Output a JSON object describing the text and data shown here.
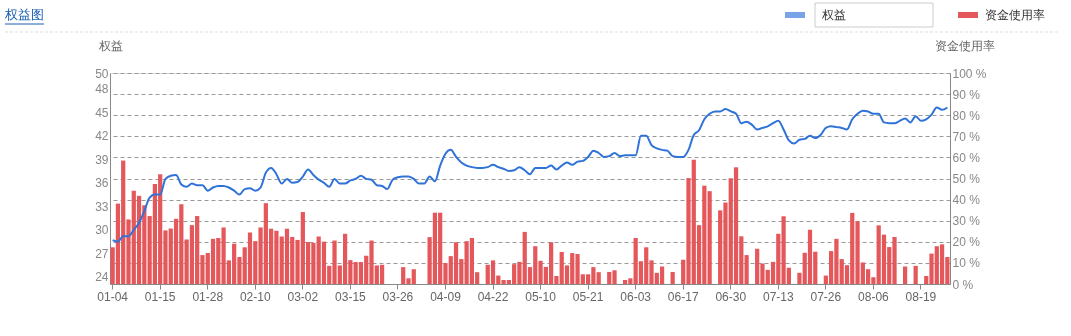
{
  "chart_data": {
    "type": "bar",
    "title": "权益图",
    "ylabel": "权益",
    "y2label": "资金使用率",
    "categories": [
      "01-04",
      null,
      null,
      null,
      null,
      null,
      null,
      null,
      null,
      "01-15",
      null,
      null,
      null,
      null,
      null,
      null,
      null,
      null,
      "01-28",
      null,
      null,
      null,
      null,
      null,
      null,
      null,
      null,
      "02-10",
      null,
      null,
      null,
      null,
      null,
      null,
      null,
      null,
      "03-02",
      null,
      null,
      null,
      null,
      null,
      null,
      null,
      null,
      "03-15",
      null,
      null,
      null,
      null,
      null,
      null,
      null,
      null,
      "03-26",
      null,
      null,
      null,
      null,
      null,
      null,
      null,
      null,
      "04-09",
      null,
      null,
      null,
      null,
      null,
      null,
      null,
      null,
      "04-22",
      null,
      null,
      null,
      null,
      null,
      null,
      null,
      null,
      "05-10",
      null,
      null,
      null,
      null,
      null,
      null,
      null,
      null,
      "05-21",
      null,
      null,
      null,
      null,
      null,
      null,
      null,
      null,
      "06-03",
      null,
      null,
      null,
      null,
      null,
      null,
      null,
      null,
      "06-17",
      null,
      null,
      null,
      null,
      null,
      null,
      null,
      null,
      "06-30",
      null,
      null,
      null,
      null,
      null,
      null,
      null,
      null,
      "07-13",
      null,
      null,
      null,
      null,
      null,
      null,
      null,
      null,
      "07-26",
      null,
      null,
      null,
      null,
      null,
      null,
      null,
      null,
      "08-06",
      null,
      null,
      null,
      null,
      null,
      null,
      null,
      null,
      "08-19",
      null,
      null,
      null,
      null,
      null
    ],
    "series": [
      {
        "name": "权益",
        "type": "line",
        "color": "#2f72d8",
        "values": [
          28.7,
          28.5,
          29.2,
          29.2,
          30.0,
          30.9,
          32.4,
          34.1,
          34.5,
          34.5,
          36.5,
          36.9,
          37.0,
          35.8,
          35.5,
          35.9,
          35.7,
          35.7,
          35.0,
          35.4,
          35.6,
          35.6,
          35.4,
          35.0,
          34.5,
          35.2,
          35.3,
          35.0,
          35.4,
          37.3,
          37.9,
          37.1,
          35.9,
          36.5,
          36.0,
          36.1,
          36.8,
          37.7,
          37.0,
          36.4,
          36.0,
          35.5,
          36.5,
          35.9,
          35.9,
          36.3,
          36.5,
          36.9,
          36.5,
          36.4,
          35.7,
          35.6,
          35.2,
          36.4,
          36.7,
          36.8,
          36.8,
          36.5,
          35.9,
          35.9,
          36.8,
          36.2,
          38.2,
          39.7,
          40.2,
          39.3,
          38.6,
          38.2,
          38.0,
          37.9,
          37.9,
          38.0,
          38.3,
          38.0,
          37.8,
          37.5,
          37.6,
          38.0,
          37.6,
          37.1,
          37.9,
          37.9,
          37.9,
          38.2,
          37.7,
          38.2,
          38.6,
          38.3,
          38.7,
          38.8,
          39.3,
          40.1,
          39.8,
          39.3,
          39.4,
          39.8,
          39.4,
          39.5,
          39.5,
          39.5,
          42.0,
          42.0,
          40.8,
          40.4,
          40.2,
          40.1,
          39.4,
          39.3,
          39.3,
          40.2,
          42.1,
          42.7,
          44.1,
          44.8,
          45.1,
          45.1,
          45.4,
          45.1,
          44.8,
          43.6,
          43.8,
          43.4,
          42.8,
          43.0,
          43.2,
          43.6,
          43.9,
          42.8,
          41.4,
          41.0,
          41.5,
          41.6,
          42.0,
          41.7,
          42.1,
          43.0,
          43.2,
          43.1,
          43.0,
          42.8,
          44.1,
          44.8,
          45.2,
          45.1,
          44.8,
          44.8,
          43.7,
          43.6,
          43.6,
          43.9,
          44.2,
          43.7,
          44.5,
          43.9,
          44.1,
          44.7,
          45.6,
          45.3,
          45.6
        ]
      },
      {
        "name": "资金使用率",
        "axis": "y2",
        "color": "#e4575b",
        "values": [
          17.4,
          38.1,
          58.5,
          30.6,
          44.2,
          41.8,
          37.3,
          32.2,
          47.4,
          52.0,
          25.4,
          26.3,
          30.9,
          37.8,
          21.1,
          27.9,
          32.2,
          13.7,
          14.7,
          21.4,
          21.8,
          26.8,
          11.2,
          19.1,
          12.8,
          17.4,
          24.4,
          20.3,
          26.8,
          38.3,
          26.2,
          25.2,
          22.5,
          26.2,
          22.3,
          20.9,
          34.1,
          19.9,
          19.5,
          22.5,
          20.1,
          8.6,
          20.6,
          8.8,
          23.8,
          11.3,
          10.4,
          10.4,
          13.4,
          20.6,
          8.8,
          9.1,
          0,
          0,
          0,
          8.0,
          2.7,
          7.0,
          0,
          0,
          22.2,
          33.8,
          33.8,
          9.9,
          13.2,
          19.8,
          11.8,
          20.3,
          21.8,
          5.6,
          0,
          9.1,
          11.2,
          4.0,
          1.9,
          1.9,
          9.4,
          10.5,
          24.7,
          8.0,
          17.9,
          11.0,
          8.1,
          19.8,
          3.8,
          15.2,
          8.8,
          14.7,
          14.2,
          4.6,
          4.6,
          8.0,
          5.6,
          0,
          5.7,
          6.5,
          0,
          1.9,
          2.7,
          21.8,
          10.8,
          17.4,
          11.2,
          5.3,
          8.3,
          0,
          5.7,
          0,
          11.5,
          50.2,
          58.9,
          27.9,
          46.6,
          44.0,
          0,
          34.9,
          38.6,
          50.1,
          55.3,
          22.6,
          13.7,
          0,
          16.7,
          9.7,
          6.7,
          10.5,
          23.8,
          32.1,
          7.7,
          0,
          5.3,
          14.8,
          25.7,
          15.3,
          0,
          4.0,
          15.6,
          21.4,
          11.8,
          8.9,
          33.7,
          29.7,
          10.2,
          7.0,
          3.2,
          27.8,
          23.4,
          17.5,
          22.3,
          0,
          8.3,
          0,
          8.6,
          0,
          3.8,
          14.4,
          17.9,
          18.8,
          12.8
        ]
      }
    ],
    "ylim": [
      23.1,
      50
    ],
    "yticks": [
      24,
      27,
      30,
      33,
      36,
      39,
      42,
      45,
      48,
      50
    ],
    "y2lim": [
      0,
      100
    ],
    "y2ticks": [
      {
        "value": 0,
        "label": "0 %"
      },
      {
        "value": 10,
        "label": "10 %"
      },
      {
        "value": 20,
        "label": "20 %"
      },
      {
        "value": 30,
        "label": "30 %"
      },
      {
        "value": 40,
        "label": "40 %"
      },
      {
        "value": 50,
        "label": "50 %"
      },
      {
        "value": 60,
        "label": "60 %"
      },
      {
        "value": 70,
        "label": "70 %"
      },
      {
        "value": 80,
        "label": "80 %"
      },
      {
        "value": 90,
        "label": "90 %"
      },
      {
        "value": 100,
        "label": "100 %"
      }
    ],
    "grid": "y",
    "legend": "top right"
  }
}
